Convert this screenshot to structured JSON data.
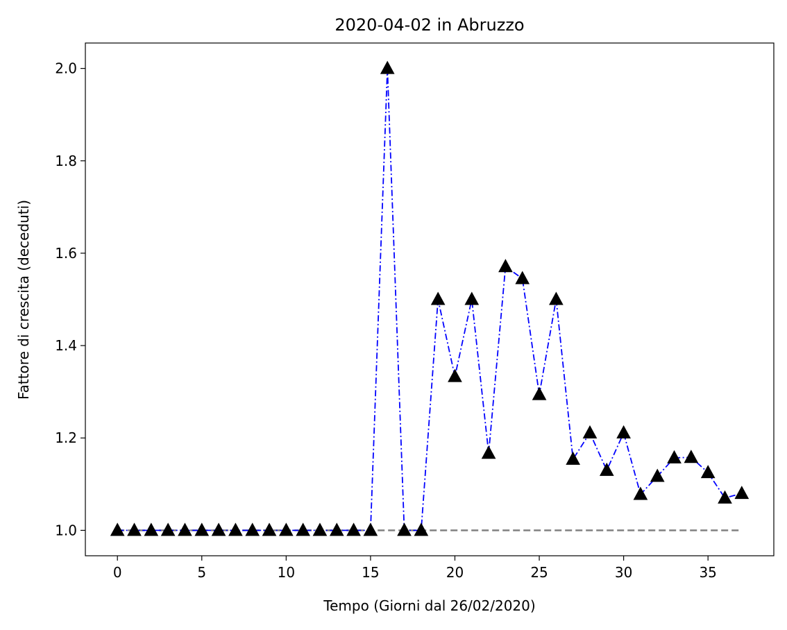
{
  "chart_data": {
    "type": "line",
    "title": "2020-04-02 in Abruzzo",
    "xlabel": "Tempo (Giorni dal 26/02/2020)",
    "ylabel": "Fattore di crescita (deceduti)",
    "xlim": [
      -1.9,
      38.9
    ],
    "ylim": [
      0.945,
      2.055
    ],
    "xticks": [
      0,
      5,
      10,
      15,
      20,
      25,
      30,
      35
    ],
    "yticks": [
      1.0,
      1.2,
      1.4,
      1.6,
      1.8,
      2.0
    ],
    "ytick_labels": [
      "1.0",
      "1.2",
      "1.4",
      "1.6",
      "1.8",
      "2.0"
    ],
    "grid": false,
    "series": [
      {
        "style": "dash-dot line with triangle markers",
        "line_color": "#0000ff",
        "marker_color": "#000000",
        "x": [
          0,
          1,
          2,
          3,
          4,
          5,
          6,
          7,
          8,
          9,
          10,
          11,
          12,
          13,
          14,
          15,
          16,
          17,
          18,
          19,
          20,
          21,
          22,
          23,
          24,
          25,
          26,
          27,
          28,
          29,
          30,
          31,
          32,
          33,
          34,
          35,
          36,
          37
        ],
        "values": [
          1.0,
          1.0,
          1.0,
          1.0,
          1.0,
          1.0,
          1.0,
          1.0,
          1.0,
          1.0,
          1.0,
          1.0,
          1.0,
          1.0,
          1.0,
          1.0,
          2.0,
          1.0,
          1.0,
          1.5,
          1.333,
          1.5,
          1.167,
          1.571,
          1.545,
          1.294,
          1.5,
          1.154,
          1.211,
          1.13,
          1.211,
          1.078,
          1.117,
          1.157,
          1.158,
          1.125,
          1.07,
          1.08
        ]
      },
      {
        "style": "dashed reference line",
        "line_color": "#808080",
        "x": [
          0,
          37
        ],
        "values": [
          1.0,
          1.0
        ]
      }
    ]
  }
}
